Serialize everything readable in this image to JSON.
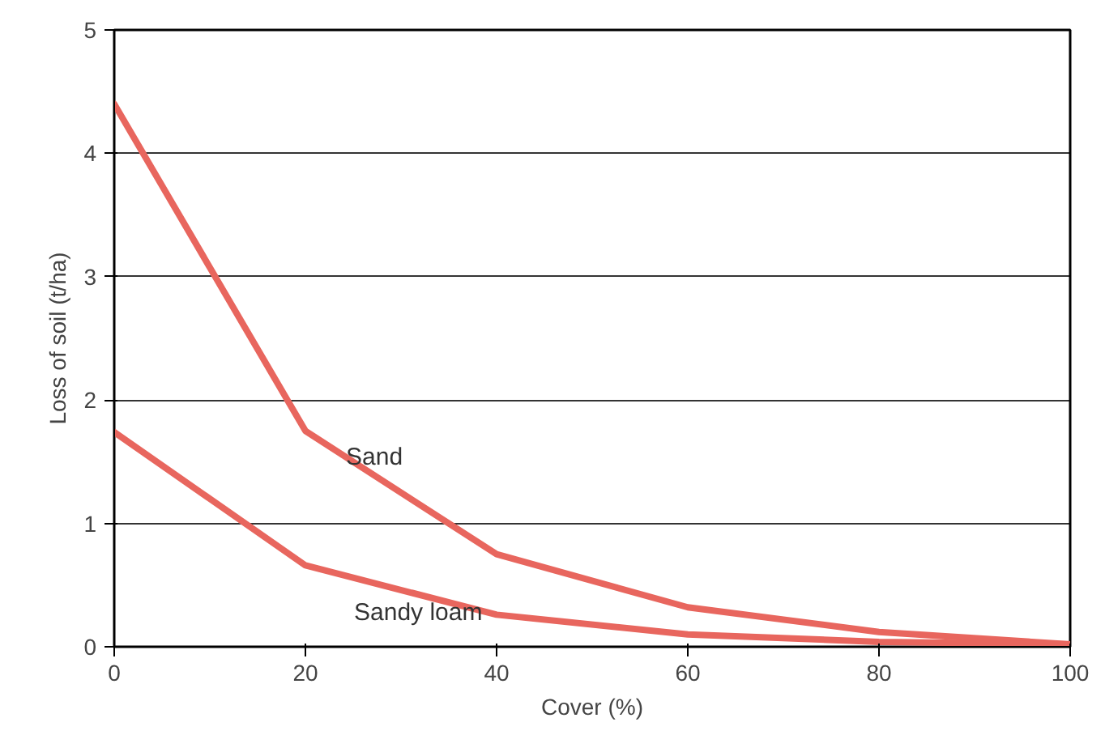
{
  "chart_data": {
    "type": "line",
    "xlabel": "Cover (%)",
    "ylabel": "Loss of soil (t/ha)",
    "x": [
      0,
      20,
      40,
      60,
      80,
      100
    ],
    "series": [
      {
        "name": "Sand",
        "color": "#e8665e",
        "values": [
          4.4,
          1.75,
          0.75,
          0.32,
          0.12,
          0.02
        ]
      },
      {
        "name": "Sandy loam",
        "color": "#e8665e",
        "values": [
          1.74,
          0.66,
          0.26,
          0.1,
          0.04,
          0.02
        ]
      }
    ],
    "xlim": [
      0,
      100
    ],
    "ylim": [
      0,
      5
    ],
    "xticks": [
      0,
      20,
      40,
      60,
      80,
      100
    ],
    "yticks": [
      0,
      1,
      2,
      3,
      4,
      5
    ],
    "grid": "y",
    "legend": false,
    "marker": "none",
    "line_style": "solid"
  }
}
